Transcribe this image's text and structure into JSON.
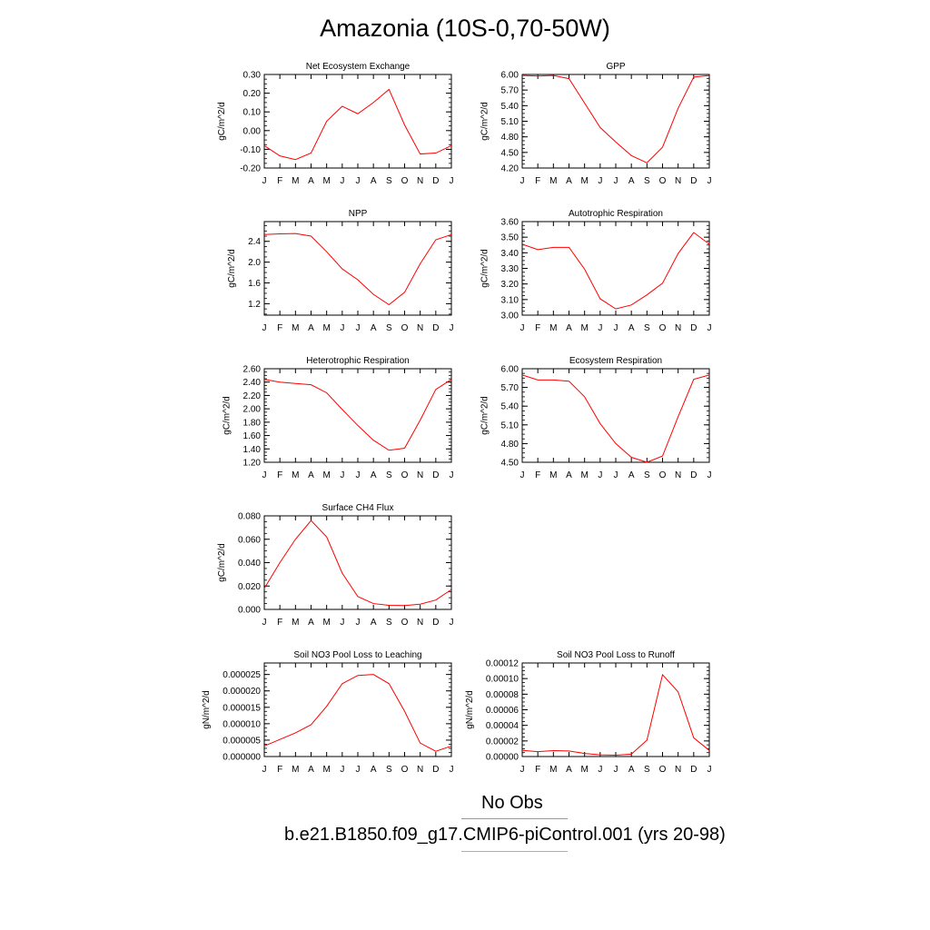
{
  "figure": {
    "title": "Amazonia (10S-0,70-50W)",
    "legend": [
      {
        "label": "No Obs",
        "color": "#8c8cff"
      },
      {
        "label": "b.e21.B1850.f09_g17.CMIP6-piControl.001 (yrs 20-98)",
        "color": "#ff8c8c"
      }
    ],
    "series_color": "#ff0000"
  },
  "chart_data": [
    {
      "type": "line",
      "title": "Net Ecosystem Exchange",
      "ylabel": "gC/m^2/d",
      "categories": [
        "J",
        "F",
        "M",
        "A",
        "M",
        "J",
        "J",
        "A",
        "S",
        "O",
        "N",
        "D",
        "J"
      ],
      "values": [
        -0.08,
        -0.135,
        -0.155,
        -0.12,
        0.05,
        0.13,
        0.09,
        0.15,
        0.22,
        0.03,
        -0.125,
        -0.12,
        -0.08
      ],
      "ylim": [
        -0.2,
        0.3
      ],
      "yticks": [
        "-0.20",
        "-0.10",
        "0.00",
        "0.10",
        "0.20",
        "0.30"
      ],
      "ytick_values": [
        -0.2,
        -0.1,
        0,
        0.1,
        0.2,
        0.3
      ]
    },
    {
      "type": "line",
      "title": "GPP",
      "ylabel": "gC/m^2/d",
      "categories": [
        "J",
        "F",
        "M",
        "A",
        "M",
        "J",
        "J",
        "A",
        "S",
        "O",
        "N",
        "D",
        "J"
      ],
      "values": [
        5.98,
        5.97,
        5.98,
        5.92,
        5.45,
        4.98,
        4.7,
        4.44,
        4.3,
        4.6,
        5.35,
        5.95,
        5.98
      ],
      "ylim": [
        4.2,
        6.0
      ],
      "yticks": [
        "4.20",
        "4.50",
        "4.80",
        "5.10",
        "5.40",
        "5.70",
        "6.00"
      ],
      "ytick_values": [
        4.2,
        4.5,
        4.8,
        5.1,
        5.4,
        5.7,
        6.0
      ]
    },
    {
      "type": "line",
      "title": "NPP",
      "ylabel": "gC/m^2/d",
      "categories": [
        "J",
        "F",
        "M",
        "A",
        "M",
        "J",
        "J",
        "A",
        "S",
        "O",
        "N",
        "D",
        "J"
      ],
      "values": [
        2.53,
        2.545,
        2.55,
        2.5,
        2.2,
        1.87,
        1.66,
        1.38,
        1.18,
        1.42,
        1.97,
        2.43,
        2.53
      ],
      "ylim": [
        0.98,
        2.78
      ],
      "yticks": [
        "1.2",
        "1.6",
        "2.0",
        "2.4"
      ],
      "ytick_values": [
        1.2,
        1.6,
        2.0,
        2.4
      ]
    },
    {
      "type": "line",
      "title": "Autotrophic Respiration",
      "ylabel": "gC/m^2/d",
      "categories": [
        "J",
        "F",
        "M",
        "A",
        "M",
        "J",
        "J",
        "A",
        "S",
        "O",
        "N",
        "D",
        "J"
      ],
      "values": [
        3.455,
        3.42,
        3.435,
        3.435,
        3.295,
        3.105,
        3.04,
        3.065,
        3.13,
        3.205,
        3.395,
        3.53,
        3.455
      ],
      "ylim": [
        3.0,
        3.6
      ],
      "yticks": [
        "3.00",
        "3.10",
        "3.20",
        "3.30",
        "3.40",
        "3.50",
        "3.60"
      ],
      "ytick_values": [
        3.0,
        3.1,
        3.2,
        3.3,
        3.4,
        3.5,
        3.6
      ]
    },
    {
      "type": "line",
      "title": "Heterotrophic Respiration",
      "ylabel": "gC/m^2/d",
      "categories": [
        "J",
        "F",
        "M",
        "A",
        "M",
        "J",
        "J",
        "A",
        "S",
        "O",
        "N",
        "D",
        "J"
      ],
      "values": [
        2.44,
        2.4,
        2.38,
        2.36,
        2.24,
        1.99,
        1.75,
        1.53,
        1.38,
        1.41,
        1.83,
        2.29,
        2.44
      ],
      "ylim": [
        1.2,
        2.6
      ],
      "yticks": [
        "1.20",
        "1.40",
        "1.60",
        "1.80",
        "2.00",
        "2.20",
        "2.40",
        "2.60"
      ],
      "ytick_values": [
        1.2,
        1.4,
        1.6,
        1.8,
        2.0,
        2.2,
        2.4,
        2.6
      ]
    },
    {
      "type": "line",
      "title": "Ecosystem Respiration",
      "ylabel": "gC/m^2/d",
      "categories": [
        "J",
        "F",
        "M",
        "A",
        "M",
        "J",
        "J",
        "A",
        "S",
        "O",
        "N",
        "D",
        "J"
      ],
      "values": [
        5.9,
        5.82,
        5.82,
        5.8,
        5.55,
        5.12,
        4.8,
        4.58,
        4.5,
        4.6,
        5.23,
        5.83,
        5.9
      ],
      "ylim": [
        4.5,
        6.0
      ],
      "yticks": [
        "4.50",
        "4.80",
        "5.10",
        "5.40",
        "5.70",
        "6.00"
      ],
      "ytick_values": [
        4.5,
        4.8,
        5.1,
        5.4,
        5.7,
        6.0
      ]
    },
    {
      "type": "line",
      "title": "Surface CH4 Flux",
      "ylabel": "gC/m^2/d",
      "categories": [
        "J",
        "F",
        "M",
        "A",
        "M",
        "J",
        "J",
        "A",
        "S",
        "O",
        "N",
        "D",
        "J"
      ],
      "values": [
        0.018,
        0.04,
        0.06,
        0.076,
        0.062,
        0.031,
        0.011,
        0.005,
        0.0035,
        0.0033,
        0.0045,
        0.008,
        0.017
      ],
      "ylim": [
        0.0,
        0.08
      ],
      "yticks": [
        "0.000",
        "0.020",
        "0.040",
        "0.060",
        "0.080"
      ],
      "ytick_values": [
        0,
        0.02,
        0.04,
        0.06,
        0.08
      ]
    },
    {
      "type": "line",
      "title": "Soil NO3 Pool Loss to Leaching",
      "ylabel": "gN/m^2/d",
      "categories": [
        "J",
        "F",
        "M",
        "A",
        "M",
        "J",
        "J",
        "A",
        "S",
        "O",
        "N",
        "D",
        "J"
      ],
      "values": [
        3.2e-06,
        5.2e-06,
        7.2e-06,
        9.7e-06,
        1.53e-05,
        2.22e-05,
        2.47e-05,
        2.5e-05,
        2.22e-05,
        1.38e-05,
        4.1e-06,
        1.6e-06,
        3.2e-06
      ],
      "ylim": [
        0.0,
        2.85e-05
      ],
      "yticks": [
        "0.000000",
        "0.000005",
        "0.000010",
        "0.000015",
        "0.000020",
        "0.000025"
      ],
      "ytick_values": [
        0,
        5e-06,
        1e-05,
        1.5e-05,
        2e-05,
        2.5e-05
      ]
    },
    {
      "type": "line",
      "title": "Soil NO3 Pool Loss to Runoff",
      "ylabel": "gN/m^2/d",
      "categories": [
        "J",
        "F",
        "M",
        "A",
        "M",
        "J",
        "J",
        "A",
        "S",
        "O",
        "N",
        "D",
        "J"
      ],
      "values": [
        7.8e-06,
        6.2e-06,
        7.5e-06,
        7.2e-06,
        4e-06,
        2.2e-06,
        1.8e-06,
        3e-06,
        2.1e-05,
        0.000105,
        8.3e-05,
        2.4e-05,
        7.8e-06
      ],
      "ylim": [
        0.0,
        0.00012
      ],
      "yticks": [
        "0.00000",
        "0.00002",
        "0.00004",
        "0.00006",
        "0.00008",
        "0.00010",
        "0.00012"
      ],
      "ytick_values": [
        0,
        2e-05,
        4e-05,
        6e-05,
        8e-05,
        0.0001,
        0.00012
      ]
    }
  ]
}
